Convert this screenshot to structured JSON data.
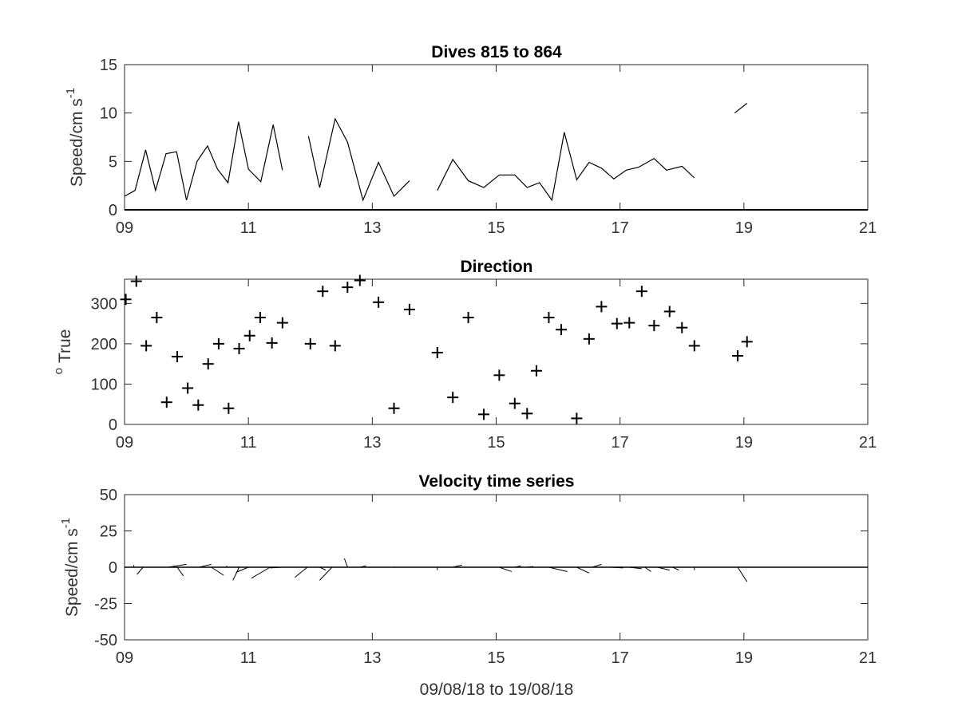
{
  "chart_data": [
    {
      "type": "line",
      "title": "Dives 815 to 864",
      "xlabel": "",
      "ylabel": "Speed/cm s",
      "ylabel_exponent": "-1",
      "xlim": [
        9,
        21
      ],
      "ylim": [
        0,
        15
      ],
      "xticks": [
        9,
        11,
        13,
        15,
        17,
        19,
        21
      ],
      "xtick_labels": [
        "09",
        "11",
        "13",
        "15",
        "17",
        "19",
        "21"
      ],
      "yticks": [
        0,
        5,
        10,
        15
      ],
      "ytick_labels": [
        "0",
        "5",
        "10",
        "15"
      ],
      "grid": false,
      "segments": [
        {
          "x": [
            9.0,
            9.17,
            9.34,
            9.5,
            9.67,
            9.84,
            10.0,
            10.17,
            10.34,
            10.5,
            10.67,
            10.84,
            11.0,
            11.2,
            11.4,
            11.55
          ],
          "y": [
            1.4,
            2.0,
            6.2,
            2.0,
            5.8,
            6.0,
            1.0,
            5.0,
            6.6,
            4.2,
            2.8,
            9.1,
            4.2,
            2.9,
            8.8,
            4.1
          ]
        },
        {
          "x": [
            11.97,
            12.15,
            12.4,
            12.6,
            12.85,
            13.1,
            13.35,
            13.6
          ],
          "y": [
            7.6,
            2.3,
            9.4,
            7.0,
            1.0,
            4.9,
            1.4,
            3.0
          ]
        },
        {
          "x": [
            14.05,
            14.3,
            14.55,
            14.8,
            15.05,
            15.3,
            15.5,
            15.7,
            15.9,
            16.1,
            16.3,
            16.5,
            16.7,
            16.9,
            17.1,
            17.3,
            17.55,
            17.75,
            18.0,
            18.2
          ],
          "y": [
            2.0,
            5.2,
            3.0,
            2.3,
            3.6,
            3.6,
            2.3,
            2.8,
            1.0,
            8.0,
            3.1,
            4.9,
            4.3,
            3.2,
            4.1,
            4.4,
            5.3,
            4.1,
            4.5,
            3.3
          ]
        },
        {
          "x": [
            18.85,
            19.05
          ],
          "y": [
            10.0,
            11.0
          ]
        }
      ],
      "baseline": 0
    },
    {
      "type": "scatter",
      "title": "Direction",
      "xlabel": "",
      "ylabel": "True",
      "ylabel_prefix": "o",
      "xlim": [
        9,
        21
      ],
      "ylim": [
        0,
        360
      ],
      "xticks": [
        9,
        11,
        13,
        15,
        17,
        19,
        21
      ],
      "xtick_labels": [
        "09",
        "11",
        "13",
        "15",
        "17",
        "19",
        "21"
      ],
      "yticks": [
        0,
        100,
        200,
        300
      ],
      "ytick_labels": [
        "0",
        "100",
        "200",
        "300"
      ],
      "grid": false,
      "marker": "+",
      "x": [
        9.02,
        9.19,
        9.35,
        9.52,
        9.68,
        9.85,
        10.02,
        10.19,
        10.35,
        10.52,
        10.68,
        10.85,
        11.02,
        11.19,
        11.38,
        11.55,
        12.0,
        12.2,
        12.4,
        12.6,
        12.8,
        13.1,
        13.35,
        13.6,
        14.05,
        14.3,
        14.55,
        14.8,
        15.05,
        15.3,
        15.5,
        15.65,
        15.85,
        16.05,
        16.3,
        16.5,
        16.7,
        16.95,
        17.15,
        17.35,
        17.55,
        17.8,
        18.0,
        18.2,
        18.9,
        19.05
      ],
      "y": [
        310,
        355,
        195,
        265,
        55,
        168,
        90,
        48,
        150,
        200,
        40,
        188,
        220,
        265,
        202,
        252,
        200,
        330,
        195,
        340,
        357,
        303,
        40,
        285,
        178,
        67,
        265,
        25,
        122,
        52,
        27,
        133,
        265,
        235,
        15,
        212,
        292,
        250,
        252,
        330,
        245,
        280,
        240,
        195,
        170,
        205
      ]
    },
    {
      "type": "line",
      "title": "Velocity time series",
      "xlabel": "09/08/18 to 19/08/18",
      "ylabel": "Speed/cm s",
      "ylabel_exponent": "-1",
      "xlim": [
        9,
        21
      ],
      "ylim": [
        -50,
        50
      ],
      "xticks": [
        9,
        11,
        13,
        15,
        17,
        19,
        21
      ],
      "xtick_labels": [
        "09",
        "11",
        "13",
        "15",
        "17",
        "19",
        "21"
      ],
      "yticks": [
        -50,
        -25,
        0,
        25,
        50
      ],
      "ytick_labels": [
        "-50",
        "-25",
        "0",
        "25",
        "50"
      ],
      "grid": false,
      "baseline": 0,
      "baseline_xlim": [
        9,
        21
      ],
      "sticks": [
        {
          "x": 9.15,
          "u": 0.0,
          "v": 1.5
        },
        {
          "x": 9.3,
          "u": -0.1,
          "v": -5.0
        },
        {
          "x": 9.7,
          "u": 0.3,
          "v": 2.0
        },
        {
          "x": 9.85,
          "u": 0.1,
          "v": -6.0
        },
        {
          "x": 10.2,
          "u": 0.2,
          "v": 2.0
        },
        {
          "x": 10.4,
          "u": 0.2,
          "v": -5.5
        },
        {
          "x": 10.65,
          "u": 0.0,
          "v": 1.0
        },
        {
          "x": 10.85,
          "u": -0.1,
          "v": -9.0
        },
        {
          "x": 11.0,
          "u": -0.2,
          "v": -3.5
        },
        {
          "x": 11.35,
          "u": -0.3,
          "v": -7.5
        },
        {
          "x": 11.55,
          "u": -0.2,
          "v": -0.5
        },
        {
          "x": 11.95,
          "u": -0.2,
          "v": -7.0
        },
        {
          "x": 12.15,
          "u": 0.1,
          "v": -2.0
        },
        {
          "x": 12.35,
          "u": -0.2,
          "v": -9.0
        },
        {
          "x": 12.6,
          "u": -0.05,
          "v": 6.0
        },
        {
          "x": 12.8,
          "u": 0.1,
          "v": 1.0
        },
        {
          "x": 13.35,
          "u": 0.0,
          "v": 0.5
        },
        {
          "x": 14.05,
          "u": 0.0,
          "v": -2.0
        },
        {
          "x": 14.3,
          "u": 0.15,
          "v": 1.5
        },
        {
          "x": 15.05,
          "u": 0.2,
          "v": -3.0
        },
        {
          "x": 15.3,
          "u": 0.1,
          "v": 1.0
        },
        {
          "x": 15.5,
          "u": 0.1,
          "v": 0.5
        },
        {
          "x": 15.85,
          "u": 0.3,
          "v": -3.0
        },
        {
          "x": 16.3,
          "u": 0.2,
          "v": -4.0
        },
        {
          "x": 16.55,
          "u": 0.15,
          "v": 2.0
        },
        {
          "x": 16.85,
          "u": 0.2,
          "v": -0.5
        },
        {
          "x": 17.15,
          "u": 0.2,
          "v": -1.0
        },
        {
          "x": 17.4,
          "u": 0.1,
          "v": -3.0
        },
        {
          "x": 17.6,
          "u": 0.2,
          "v": -2.0
        },
        {
          "x": 17.85,
          "u": 0.1,
          "v": -2.0
        },
        {
          "x": 18.2,
          "u": 0.0,
          "v": -2.0
        },
        {
          "x": 18.9,
          "u": 0.15,
          "v": -10.0
        }
      ]
    }
  ]
}
